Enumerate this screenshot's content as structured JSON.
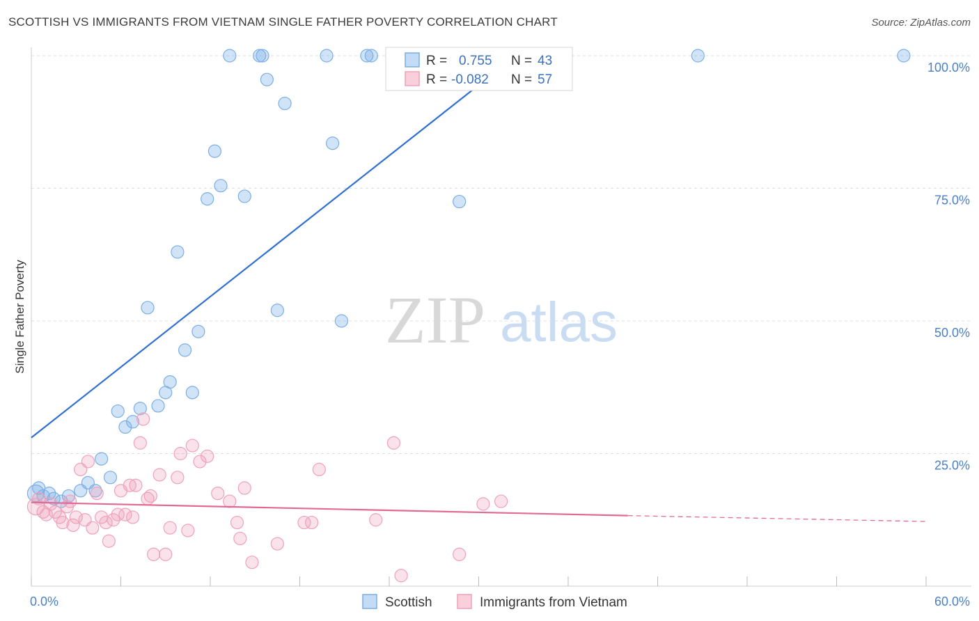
{
  "header": {
    "title": "SCOTTISH VS IMMIGRANTS FROM VIETNAM SINGLE FATHER POVERTY CORRELATION CHART",
    "source": "Source: ZipAtlas.com"
  },
  "watermark": {
    "zip": "ZIP",
    "atlas": "atlas"
  },
  "legend": {
    "r_label": "R =",
    "n_label": "N =",
    "rows": [
      {
        "name": "Scottish",
        "r": "0.755",
        "n": "43",
        "color": "#7aaee6"
      },
      {
        "name": "Immigrants from Vietnam",
        "r": "-0.082",
        "n": "57",
        "color": "#f0a0b8"
      }
    ]
  },
  "bottom_legend": [
    "Scottish",
    "Immigrants from Vietnam"
  ],
  "chart_data": {
    "type": "scatter",
    "title": "SCOTTISH VS IMMIGRANTS FROM VIETNAM SINGLE FATHER POVERTY CORRELATION CHART",
    "xlabel": "",
    "ylabel": "Single Father Poverty",
    "xlim": [
      0,
      60
    ],
    "ylim": [
      0,
      100
    ],
    "x_tick_labels": [
      "0.0%",
      "60.0%"
    ],
    "y_ticks": [
      25,
      50,
      75,
      100
    ],
    "y_tick_labels": [
      "25.0%",
      "50.0%",
      "75.0%",
      "100.0%"
    ],
    "series": [
      {
        "name": "Scottish",
        "color": "#7aaee6",
        "line_color": "#2f6fcf",
        "trend": {
          "x": [
            0,
            32.5
          ],
          "y": [
            28.0,
            100.0
          ],
          "dash_to": null
        },
        "points": [
          {
            "x": 0.3,
            "y": 17.5
          },
          {
            "x": 0.5,
            "y": 18.5
          },
          {
            "x": 0.8,
            "y": 17.0
          },
          {
            "x": 1.2,
            "y": 17.5
          },
          {
            "x": 1.5,
            "y": 16.5
          },
          {
            "x": 2.0,
            "y": 16.0
          },
          {
            "x": 2.5,
            "y": 17.0
          },
          {
            "x": 3.3,
            "y": 18.0
          },
          {
            "x": 3.8,
            "y": 19.5
          },
          {
            "x": 4.3,
            "y": 18.0
          },
          {
            "x": 4.7,
            "y": 24.0
          },
          {
            "x": 5.3,
            "y": 20.5
          },
          {
            "x": 5.8,
            "y": 33.0
          },
          {
            "x": 6.3,
            "y": 30.0
          },
          {
            "x": 6.8,
            "y": 31.0
          },
          {
            "x": 7.3,
            "y": 33.5
          },
          {
            "x": 7.8,
            "y": 52.5
          },
          {
            "x": 8.5,
            "y": 34.0
          },
          {
            "x": 9.0,
            "y": 36.5
          },
          {
            "x": 9.3,
            "y": 38.5
          },
          {
            "x": 9.8,
            "y": 63.0
          },
          {
            "x": 10.3,
            "y": 44.5
          },
          {
            "x": 10.8,
            "y": 36.5
          },
          {
            "x": 11.2,
            "y": 48.0
          },
          {
            "x": 11.8,
            "y": 73.0
          },
          {
            "x": 12.3,
            "y": 82.0
          },
          {
            "x": 12.7,
            "y": 75.5
          },
          {
            "x": 13.3,
            "y": 100.0
          },
          {
            "x": 14.3,
            "y": 73.5
          },
          {
            "x": 15.3,
            "y": 100.0
          },
          {
            "x": 15.5,
            "y": 100.0
          },
          {
            "x": 15.8,
            "y": 95.5
          },
          {
            "x": 16.5,
            "y": 52.0
          },
          {
            "x": 17.0,
            "y": 91.0
          },
          {
            "x": 19.8,
            "y": 100.0
          },
          {
            "x": 20.2,
            "y": 83.5
          },
          {
            "x": 20.8,
            "y": 50.0
          },
          {
            "x": 22.5,
            "y": 100.0
          },
          {
            "x": 22.8,
            "y": 100.0
          },
          {
            "x": 24.3,
            "y": 100.0
          },
          {
            "x": 28.7,
            "y": 72.5
          },
          {
            "x": 44.7,
            "y": 100.0
          },
          {
            "x": 58.5,
            "y": 100.0
          }
        ]
      },
      {
        "name": "Immigrants from Vietnam",
        "color": "#f0a0b8",
        "line_color": "#e06a93",
        "trend": {
          "x": [
            0,
            40.0
          ],
          "y": [
            15.8,
            13.3
          ],
          "dash_to": [
            60,
            12.2
          ]
        },
        "points": [
          {
            "x": 0.3,
            "y": 15.0
          },
          {
            "x": 0.5,
            "y": 16.5
          },
          {
            "x": 0.8,
            "y": 14.0
          },
          {
            "x": 1.0,
            "y": 13.5
          },
          {
            "x": 1.3,
            "y": 15.5
          },
          {
            "x": 1.6,
            "y": 14.0
          },
          {
            "x": 1.9,
            "y": 13.0
          },
          {
            "x": 2.1,
            "y": 12.0
          },
          {
            "x": 2.4,
            "y": 15.0
          },
          {
            "x": 2.6,
            "y": 16.0
          },
          {
            "x": 2.8,
            "y": 11.5
          },
          {
            "x": 3.0,
            "y": 13.0
          },
          {
            "x": 3.3,
            "y": 22.0
          },
          {
            "x": 3.6,
            "y": 12.5
          },
          {
            "x": 3.8,
            "y": 23.5
          },
          {
            "x": 4.1,
            "y": 11.0
          },
          {
            "x": 4.4,
            "y": 17.5
          },
          {
            "x": 4.7,
            "y": 13.0
          },
          {
            "x": 5.0,
            "y": 12.0
          },
          {
            "x": 5.2,
            "y": 8.5
          },
          {
            "x": 5.5,
            "y": 12.5
          },
          {
            "x": 5.8,
            "y": 13.5
          },
          {
            "x": 6.0,
            "y": 18.0
          },
          {
            "x": 6.3,
            "y": 13.5
          },
          {
            "x": 6.6,
            "y": 19.0
          },
          {
            "x": 6.8,
            "y": 13.0
          },
          {
            "x": 7.0,
            "y": 19.0
          },
          {
            "x": 7.3,
            "y": 27.0
          },
          {
            "x": 7.5,
            "y": 31.5
          },
          {
            "x": 7.8,
            "y": 16.5
          },
          {
            "x": 8.0,
            "y": 17.0
          },
          {
            "x": 8.2,
            "y": 6.0
          },
          {
            "x": 8.6,
            "y": 21.0
          },
          {
            "x": 9.0,
            "y": 6.0
          },
          {
            "x": 9.3,
            "y": 11.0
          },
          {
            "x": 9.8,
            "y": 20.5
          },
          {
            "x": 10.0,
            "y": 25.0
          },
          {
            "x": 10.5,
            "y": 10.5
          },
          {
            "x": 10.8,
            "y": 26.5
          },
          {
            "x": 11.3,
            "y": 23.5
          },
          {
            "x": 11.8,
            "y": 24.5
          },
          {
            "x": 12.5,
            "y": 17.5
          },
          {
            "x": 13.3,
            "y": 16.0
          },
          {
            "x": 13.8,
            "y": 12.0
          },
          {
            "x": 14.0,
            "y": 9.0
          },
          {
            "x": 14.3,
            "y": 18.5
          },
          {
            "x": 14.8,
            "y": 4.5
          },
          {
            "x": 16.5,
            "y": 8.0
          },
          {
            "x": 18.3,
            "y": 12.0
          },
          {
            "x": 18.8,
            "y": 12.0
          },
          {
            "x": 19.3,
            "y": 22.0
          },
          {
            "x": 23.1,
            "y": 12.5
          },
          {
            "x": 24.3,
            "y": 27.0
          },
          {
            "x": 24.8,
            "y": 2.0
          },
          {
            "x": 28.7,
            "y": 6.0
          },
          {
            "x": 30.3,
            "y": 15.5
          },
          {
            "x": 31.5,
            "y": 16.0
          }
        ]
      }
    ]
  }
}
